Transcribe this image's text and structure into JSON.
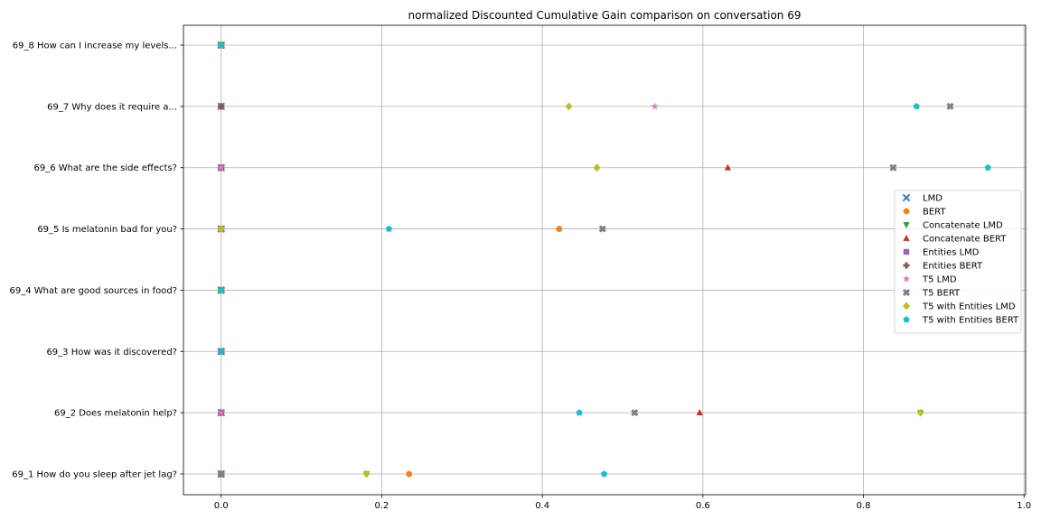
{
  "chart_data": {
    "type": "scatter",
    "title": "normalized Discounted Cumulative Gain comparison on conversation 69",
    "xlabel": "",
    "ylabel": "",
    "xlim": [
      -0.047,
      1.002
    ],
    "xticks": [
      0.0,
      0.2,
      0.4,
      0.6,
      0.8,
      1.0
    ],
    "xtick_labels": [
      "0.0",
      "0.2",
      "0.4",
      "0.6",
      "0.8",
      "1.0"
    ],
    "grid": true,
    "legend_position": "center-right",
    "categories": [
      "69_1 How do you sleep after jet lag?",
      "69_2 Does melatonin help?",
      "69_3 How was it discovered?",
      "69_4 What are good sources in food?",
      "69_5 Is melatonin bad for you?",
      "69_6 What are the side effects?",
      "69_7 Why does it require a...",
      "69_8 How can I increase my levels..."
    ],
    "series": [
      {
        "name": "LMD",
        "marker": "x",
        "color": "#1f77b4",
        "values": [
          0,
          0,
          0,
          0,
          0,
          0,
          0,
          0
        ]
      },
      {
        "name": "BERT",
        "marker": "circle",
        "color": "#ff7f0e",
        "values": [
          0.234,
          0,
          0,
          0,
          0.421,
          0,
          0,
          0
        ]
      },
      {
        "name": "Concatenate LMD",
        "marker": "triangle-down",
        "color": "#2ca02c",
        "values": [
          0.181,
          0.871,
          0,
          0,
          0,
          0,
          0,
          0
        ]
      },
      {
        "name": "Concatenate BERT",
        "marker": "triangle-up",
        "color": "#d62728",
        "values": [
          0,
          0.596,
          0,
          0,
          0,
          0.631,
          0,
          0
        ]
      },
      {
        "name": "Entities LMD",
        "marker": "square",
        "color": "#9467bd",
        "values": [
          0,
          0,
          0,
          0,
          0,
          0,
          0,
          0
        ]
      },
      {
        "name": "Entities BERT",
        "marker": "plus",
        "color": "#8c564b",
        "values": [
          0,
          0,
          0,
          0,
          0,
          0,
          0,
          0
        ]
      },
      {
        "name": "T5 LMD",
        "marker": "star",
        "color": "#e377c2",
        "values": [
          0,
          0,
          0,
          0,
          0,
          0,
          0.54,
          0
        ]
      },
      {
        "name": "T5 BERT",
        "marker": "x-filled",
        "color": "#7f7f7f",
        "values": [
          0,
          0.515,
          0,
          0,
          0.475,
          0.837,
          0.908,
          0
        ]
      },
      {
        "name": "T5 with Entities LMD",
        "marker": "diamond",
        "color": "#bcbd22",
        "values": [
          0.181,
          0.871,
          0,
          0,
          0,
          0.468,
          0.433,
          0
        ]
      },
      {
        "name": "T5 with Entities BERT",
        "marker": "pentagon",
        "color": "#17becf",
        "values": [
          0.477,
          0.446,
          0,
          0,
          0.209,
          0.955,
          0.866,
          0
        ]
      }
    ]
  }
}
